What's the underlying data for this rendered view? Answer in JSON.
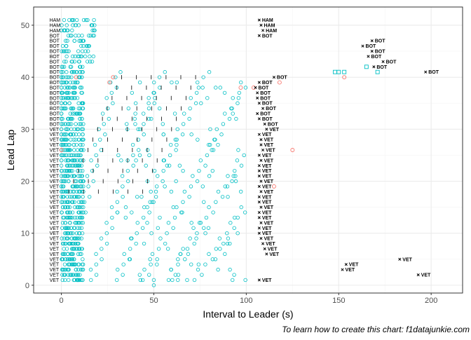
{
  "chart_data": {
    "type": "scatter",
    "title": "",
    "xlabel": "Interval to Leader (s)",
    "ylabel": "Lead Lap",
    "caption": "To learn how to create this chart: f1datajunkie.com",
    "xlim": [
      -15,
      217
    ],
    "ylim": [
      -1.5,
      53.5
    ],
    "xticks": [
      0,
      50,
      100,
      150,
      200
    ],
    "yticks": [
      0,
      10,
      20,
      30,
      40,
      50
    ],
    "grid": true,
    "legend": "none",
    "colors": {
      "points": "#00bfc4",
      "pit": "#f8766d",
      "panel_border": "#333333",
      "grid_major": "#ebebeb",
      "grid_minor": "#f5f5f5"
    },
    "leader_codes": [
      {
        "lap": 1,
        "code": "VET"
      },
      {
        "lap": 2,
        "code": "VET"
      },
      {
        "lap": 3,
        "code": "VET"
      },
      {
        "lap": 4,
        "code": "VET"
      },
      {
        "lap": 5,
        "code": "VET"
      },
      {
        "lap": 6,
        "code": "VET"
      },
      {
        "lap": 7,
        "code": "VET"
      },
      {
        "lap": 8,
        "code": "VET"
      },
      {
        "lap": 9,
        "code": "VET"
      },
      {
        "lap": 10,
        "code": "VET"
      },
      {
        "lap": 11,
        "code": "VET"
      },
      {
        "lap": 12,
        "code": "VET"
      },
      {
        "lap": 13,
        "code": "VET"
      },
      {
        "lap": 14,
        "code": "VET"
      },
      {
        "lap": 15,
        "code": "VET"
      },
      {
        "lap": 16,
        "code": "VET"
      },
      {
        "lap": 17,
        "code": "VET"
      },
      {
        "lap": 18,
        "code": "VET"
      },
      {
        "lap": 19,
        "code": "VET"
      },
      {
        "lap": 20,
        "code": "VET"
      },
      {
        "lap": 21,
        "code": "VET"
      },
      {
        "lap": 22,
        "code": "VET"
      },
      {
        "lap": 23,
        "code": "VET"
      },
      {
        "lap": 24,
        "code": "VET"
      },
      {
        "lap": 25,
        "code": "VET"
      },
      {
        "lap": 26,
        "code": "VET"
      },
      {
        "lap": 27,
        "code": "VET"
      },
      {
        "lap": 28,
        "code": "VET"
      },
      {
        "lap": 29,
        "code": "VET"
      },
      {
        "lap": 30,
        "code": "VET"
      },
      {
        "lap": 31,
        "code": "BOT"
      },
      {
        "lap": 32,
        "code": "BOT"
      },
      {
        "lap": 33,
        "code": "BOT"
      },
      {
        "lap": 34,
        "code": "BOT"
      },
      {
        "lap": 35,
        "code": "BOT"
      },
      {
        "lap": 36,
        "code": "BOT"
      },
      {
        "lap": 37,
        "code": "BOT"
      },
      {
        "lap": 38,
        "code": "BOT"
      },
      {
        "lap": 39,
        "code": "BOT"
      },
      {
        "lap": 40,
        "code": "BOT"
      },
      {
        "lap": 41,
        "code": "BOT"
      },
      {
        "lap": 42,
        "code": "BOT"
      },
      {
        "lap": 43,
        "code": "BOT"
      },
      {
        "lap": 44,
        "code": "BOT"
      },
      {
        "lap": 45,
        "code": "BOT"
      },
      {
        "lap": 46,
        "code": "BOT"
      },
      {
        "lap": 47,
        "code": "BOT"
      },
      {
        "lap": 48,
        "code": "BOT"
      },
      {
        "lap": 49,
        "code": "HAM"
      },
      {
        "lap": 50,
        "code": "HAM"
      },
      {
        "lap": 51,
        "code": "HAM"
      }
    ],
    "lapped_markers": [
      {
        "x": 107,
        "y": 1,
        "code": "VET"
      },
      {
        "x": 193,
        "y": 2,
        "code": "VET"
      },
      {
        "x": 152,
        "y": 3,
        "code": "VET"
      },
      {
        "x": 154,
        "y": 4,
        "code": "VET"
      },
      {
        "x": 183,
        "y": 5,
        "code": "VET"
      },
      {
        "x": 111,
        "y": 6,
        "code": "VET"
      },
      {
        "x": 110,
        "y": 7,
        "code": "VET"
      },
      {
        "x": 109,
        "y": 8,
        "code": "VET"
      },
      {
        "x": 108,
        "y": 9,
        "code": "VET"
      },
      {
        "x": 107,
        "y": 10,
        "code": "VET"
      },
      {
        "x": 107,
        "y": 11,
        "code": "VET"
      },
      {
        "x": 108,
        "y": 12,
        "code": "VET"
      },
      {
        "x": 107,
        "y": 13,
        "code": "VET"
      },
      {
        "x": 107,
        "y": 14,
        "code": "VET"
      },
      {
        "x": 108,
        "y": 15,
        "code": "VET"
      },
      {
        "x": 107,
        "y": 16,
        "code": "VET"
      },
      {
        "x": 107,
        "y": 17,
        "code": "VET"
      },
      {
        "x": 108,
        "y": 18,
        "code": "VET"
      },
      {
        "x": 107,
        "y": 19,
        "code": "VET"
      },
      {
        "x": 108,
        "y": 20,
        "code": "VET"
      },
      {
        "x": 107,
        "y": 21,
        "code": "VET"
      },
      {
        "x": 107,
        "y": 22,
        "code": "VET"
      },
      {
        "x": 107,
        "y": 23,
        "code": "VET"
      },
      {
        "x": 108,
        "y": 24,
        "code": "VET"
      },
      {
        "x": 107,
        "y": 25,
        "code": "VET"
      },
      {
        "x": 109,
        "y": 26,
        "code": "VET"
      },
      {
        "x": 108,
        "y": 27,
        "code": "VET"
      },
      {
        "x": 108,
        "y": 28,
        "code": "VET"
      },
      {
        "x": 107,
        "y": 29,
        "code": "VET"
      },
      {
        "x": 111,
        "y": 30,
        "code": "VET"
      },
      {
        "x": 110,
        "y": 31,
        "code": "BOT"
      },
      {
        "x": 107,
        "y": 32,
        "code": "BOT"
      },
      {
        "x": 106,
        "y": 33,
        "code": "BOT"
      },
      {
        "x": 109,
        "y": 34,
        "code": "BOT"
      },
      {
        "x": 107,
        "y": 35,
        "code": "BOT"
      },
      {
        "x": 106,
        "y": 36,
        "code": "BOT"
      },
      {
        "x": 106,
        "y": 37,
        "code": "BOT"
      },
      {
        "x": 105,
        "y": 38,
        "code": "BOT"
      },
      {
        "x": 107,
        "y": 39,
        "code": "BOT"
      },
      {
        "x": 115,
        "y": 40,
        "code": "BOT"
      },
      {
        "x": 197,
        "y": 41,
        "code": "BOT"
      },
      {
        "x": 169,
        "y": 42,
        "code": "BOT"
      },
      {
        "x": 174,
        "y": 43,
        "code": "BOT"
      },
      {
        "x": 166,
        "y": 44,
        "code": "BOT"
      },
      {
        "x": 168,
        "y": 45,
        "code": "BOT"
      },
      {
        "x": 163,
        "y": 46,
        "code": "BOT"
      },
      {
        "x": 168,
        "y": 47,
        "code": "BOT"
      },
      {
        "x": 107,
        "y": 48,
        "code": "BOT"
      },
      {
        "x": 109,
        "y": 49,
        "code": "HAM"
      },
      {
        "x": 108,
        "y": 50,
        "code": "HAM"
      },
      {
        "x": 107,
        "y": 51,
        "code": "HAM"
      }
    ],
    "pit_points": [
      {
        "x": 97,
        "y": 38
      },
      {
        "x": 104,
        "y": 38
      },
      {
        "x": 118,
        "y": 39
      },
      {
        "x": 153,
        "y": 40
      },
      {
        "x": 125,
        "y": 26
      },
      {
        "x": 115,
        "y": 19
      },
      {
        "x": 8,
        "y": 40
      },
      {
        "x": 0,
        "y": 26
      },
      {
        "x": 28,
        "y": 40
      },
      {
        "x": 26,
        "y": 39
      }
    ],
    "square_points": [
      {
        "x": 148,
        "y": 41
      },
      {
        "x": 150,
        "y": 41
      },
      {
        "x": 153,
        "y": 41
      },
      {
        "x": 165,
        "y": 42
      },
      {
        "x": 171,
        "y": 41
      }
    ]
  }
}
